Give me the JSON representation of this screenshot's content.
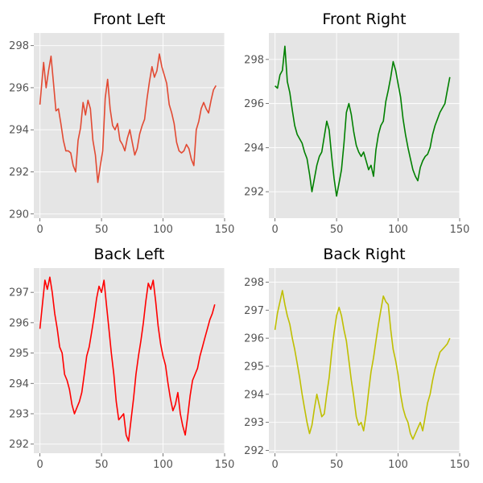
{
  "chart_data": [
    {
      "type": "line",
      "title": "Front Left",
      "xlim": [
        -5,
        150
      ],
      "ylim": [
        289.8,
        298.6
      ],
      "xticks": [
        0,
        50,
        100,
        150
      ],
      "yticks": [
        290,
        292,
        294,
        296,
        298
      ],
      "grid": true,
      "color": "#e24a33",
      "series": [
        {
          "x": [
            0,
            3,
            5,
            7,
            9,
            11,
            13,
            15,
            17,
            19,
            21,
            23,
            25,
            27,
            29,
            31,
            33,
            35,
            37,
            39,
            41,
            43,
            45,
            47,
            49,
            51,
            53,
            55,
            57,
            59,
            61,
            63,
            65,
            67,
            69,
            71,
            73,
            75,
            77,
            79,
            81,
            83,
            85,
            87,
            89,
            91,
            93,
            95,
            97,
            99,
            101,
            103,
            105,
            107,
            109,
            111,
            113,
            115,
            117,
            119,
            121,
            123,
            125,
            127,
            129,
            131,
            133,
            135,
            137,
            139,
            141,
            143
          ],
          "y": [
            295.2,
            297.2,
            296.0,
            296.8,
            297.5,
            296.2,
            294.9,
            295.0,
            294.3,
            293.5,
            293.0,
            293.0,
            292.9,
            292.3,
            292.0,
            293.5,
            294.1,
            295.3,
            294.7,
            295.4,
            295.0,
            293.5,
            292.8,
            291.5,
            292.3,
            293.0,
            295.5,
            296.4,
            295.0,
            294.2,
            294.0,
            294.3,
            293.5,
            293.3,
            293.0,
            293.6,
            294.0,
            293.4,
            292.8,
            293.1,
            293.8,
            294.2,
            294.5,
            295.5,
            296.3,
            297.0,
            296.5,
            296.8,
            297.6,
            297.0,
            296.6,
            296.2,
            295.2,
            294.8,
            294.3,
            293.4,
            293.0,
            292.9,
            293.0,
            293.3,
            293.1,
            292.6,
            292.3,
            294.0,
            294.4,
            295.0,
            295.3,
            295.0,
            294.8,
            295.4,
            295.9,
            296.1
          ]
        }
      ]
    },
    {
      "type": "line",
      "title": "Front Right",
      "xlim": [
        -5,
        150
      ],
      "ylim": [
        290.8,
        299.2
      ],
      "xticks": [
        0,
        50,
        100,
        150
      ],
      "yticks": [
        292,
        294,
        296,
        298
      ],
      "grid": true,
      "color": "#008000",
      "series": [
        {
          "x": [
            0,
            2,
            4,
            6,
            8,
            10,
            12,
            14,
            16,
            18,
            20,
            22,
            24,
            26,
            28,
            30,
            32,
            34,
            36,
            38,
            40,
            42,
            44,
            46,
            48,
            50,
            52,
            54,
            56,
            58,
            60,
            62,
            64,
            66,
            68,
            70,
            72,
            74,
            76,
            78,
            80,
            82,
            84,
            86,
            88,
            90,
            92,
            94,
            96,
            98,
            100,
            102,
            104,
            106,
            108,
            110,
            112,
            114,
            116,
            118,
            120,
            122,
            124,
            126,
            128,
            130,
            132,
            134,
            136,
            138,
            140,
            142
          ],
          "y": [
            296.8,
            296.7,
            297.3,
            297.5,
            298.6,
            297.0,
            296.5,
            295.7,
            295.0,
            294.6,
            294.4,
            294.2,
            293.8,
            293.5,
            292.8,
            292.0,
            292.6,
            293.2,
            293.6,
            293.8,
            294.5,
            295.2,
            294.8,
            293.6,
            292.6,
            291.8,
            292.4,
            293.0,
            294.2,
            295.6,
            296.0,
            295.5,
            294.7,
            294.1,
            293.8,
            293.6,
            293.8,
            293.4,
            293.0,
            293.2,
            292.7,
            293.9,
            294.6,
            295.0,
            295.2,
            296.1,
            296.6,
            297.2,
            297.9,
            297.5,
            296.9,
            296.3,
            295.3,
            294.6,
            294.0,
            293.5,
            293.0,
            292.7,
            292.5,
            293.1,
            293.4,
            293.6,
            293.7,
            294.0,
            294.6,
            295.0,
            295.3,
            295.6,
            295.8,
            296.0,
            296.6,
            297.2
          ]
        }
      ]
    },
    {
      "type": "line",
      "title": "Back Left",
      "xlim": [
        -5,
        150
      ],
      "ylim": [
        291.7,
        297.8
      ],
      "xticks": [
        0,
        50,
        100,
        150
      ],
      "yticks": [
        292,
        293,
        294,
        295,
        296,
        297
      ],
      "grid": true,
      "color": "#ff0000",
      "series": [
        {
          "x": [
            0,
            2,
            4,
            6,
            8,
            10,
            12,
            14,
            16,
            18,
            20,
            22,
            24,
            26,
            28,
            30,
            32,
            34,
            36,
            38,
            40,
            42,
            44,
            46,
            48,
            50,
            52,
            54,
            56,
            58,
            60,
            62,
            64,
            66,
            68,
            70,
            72,
            74,
            76,
            78,
            80,
            82,
            84,
            86,
            88,
            90,
            92,
            94,
            96,
            98,
            100,
            102,
            104,
            106,
            108,
            110,
            112,
            114,
            116,
            118,
            120,
            122,
            124,
            126,
            128,
            130,
            132,
            134,
            136,
            138,
            140,
            142
          ],
          "y": [
            295.8,
            296.6,
            297.4,
            297.1,
            297.5,
            297.0,
            296.3,
            295.8,
            295.2,
            295.0,
            294.3,
            294.1,
            293.8,
            293.3,
            293.0,
            293.2,
            293.4,
            293.7,
            294.3,
            294.9,
            295.2,
            295.7,
            296.2,
            296.8,
            297.2,
            297.0,
            297.4,
            296.6,
            295.8,
            295.0,
            294.3,
            293.4,
            292.8,
            292.9,
            293.0,
            292.3,
            292.1,
            292.8,
            293.5,
            294.3,
            294.9,
            295.4,
            296.0,
            296.7,
            297.3,
            297.1,
            297.4,
            296.7,
            295.9,
            295.3,
            294.9,
            294.6,
            294.0,
            293.5,
            293.1,
            293.3,
            293.7,
            293.0,
            292.6,
            292.3,
            292.9,
            293.6,
            294.1,
            294.3,
            294.5,
            294.9,
            295.2,
            295.5,
            295.8,
            296.1,
            296.3,
            296.6
          ]
        }
      ]
    },
    {
      "type": "line",
      "title": "Back Right",
      "xlim": [
        -5,
        150
      ],
      "ylim": [
        291.9,
        298.5
      ],
      "xticks": [
        0,
        50,
        100,
        150
      ],
      "yticks": [
        292,
        293,
        294,
        295,
        296,
        297,
        298
      ],
      "grid": true,
      "color": "#bfbf00",
      "series": [
        {
          "x": [
            0,
            2,
            4,
            6,
            8,
            10,
            12,
            14,
            16,
            18,
            20,
            22,
            24,
            26,
            28,
            30,
            32,
            34,
            36,
            38,
            40,
            42,
            44,
            46,
            48,
            50,
            52,
            54,
            56,
            58,
            60,
            62,
            64,
            66,
            68,
            70,
            72,
            74,
            76,
            78,
            80,
            82,
            84,
            86,
            88,
            90,
            92,
            94,
            96,
            98,
            100,
            102,
            104,
            106,
            108,
            110,
            112,
            114,
            116,
            118,
            120,
            122,
            124,
            126,
            128,
            130,
            132,
            134,
            136,
            138,
            140,
            142
          ],
          "y": [
            296.3,
            296.9,
            297.3,
            297.7,
            297.2,
            296.8,
            296.5,
            296.0,
            295.6,
            295.1,
            294.6,
            294.0,
            293.5,
            293.0,
            292.6,
            292.9,
            293.5,
            294.0,
            293.6,
            293.2,
            293.3,
            294.0,
            294.6,
            295.5,
            296.2,
            296.8,
            297.1,
            296.8,
            296.3,
            295.9,
            295.2,
            294.5,
            293.9,
            293.2,
            292.9,
            293.0,
            292.7,
            293.3,
            294.1,
            294.8,
            295.3,
            295.9,
            296.5,
            297.0,
            297.5,
            297.3,
            297.2,
            296.3,
            295.6,
            295.2,
            294.7,
            294.0,
            293.5,
            293.2,
            293.0,
            292.6,
            292.4,
            292.6,
            292.8,
            293.0,
            292.7,
            293.2,
            293.7,
            294.0,
            294.5,
            294.9,
            295.2,
            295.5,
            295.6,
            295.7,
            295.8,
            296.0
          ]
        }
      ]
    }
  ]
}
